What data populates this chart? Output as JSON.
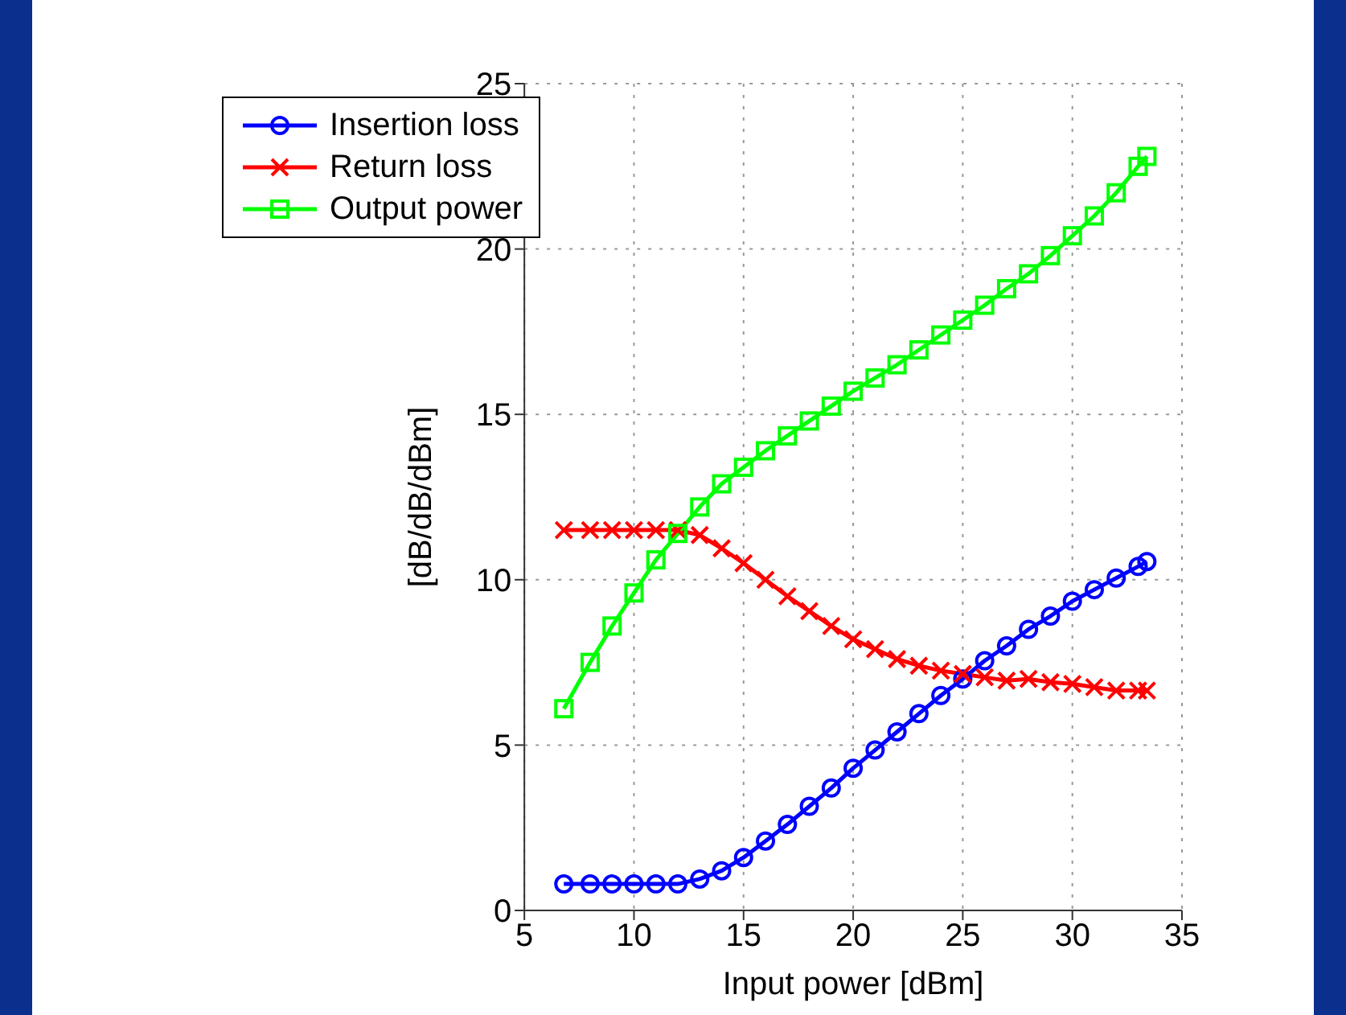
{
  "chart_data": {
    "type": "line",
    "xlabel": "Input power [dBm]",
    "ylabel": "[dB/dB/dBm]",
    "xlim": [
      5,
      35
    ],
    "xticks": [
      5,
      10,
      15,
      20,
      25,
      30,
      35
    ],
    "ylim": [
      0,
      25
    ],
    "yticks": [
      0,
      5,
      10,
      15,
      20,
      25
    ],
    "grid": true,
    "legend": "top left",
    "line_style": "solid",
    "x": [
      6.8,
      8,
      9,
      10,
      11,
      12,
      13,
      14,
      15,
      16,
      17,
      18,
      19,
      20,
      21,
      22,
      23,
      24,
      25,
      26,
      27,
      28,
      29,
      30,
      31,
      32,
      33,
      33.4
    ],
    "series": [
      {
        "name": "Insertion loss",
        "color": "#0000ff",
        "marker": "circle",
        "values": [
          0.8,
          0.8,
          0.8,
          0.8,
          0.8,
          0.8,
          0.95,
          1.2,
          1.6,
          2.1,
          2.6,
          3.15,
          3.7,
          4.3,
          4.85,
          5.4,
          5.95,
          6.5,
          7.0,
          7.55,
          8.0,
          8.5,
          8.9,
          9.35,
          9.7,
          10.05,
          10.4,
          10.55
        ]
      },
      {
        "name": "Return loss",
        "color": "#ff0000",
        "marker": "cross",
        "values": [
          11.5,
          11.5,
          11.5,
          11.5,
          11.5,
          11.5,
          11.35,
          10.95,
          10.5,
          10.0,
          9.5,
          9.05,
          8.6,
          8.2,
          7.9,
          7.6,
          7.4,
          7.25,
          7.15,
          7.05,
          6.95,
          7.0,
          6.9,
          6.85,
          6.75,
          6.65,
          6.65,
          6.65
        ]
      },
      {
        "name": "Output power",
        "color": "#00ff00",
        "marker": "square",
        "values": [
          6.1,
          7.5,
          8.6,
          9.6,
          10.6,
          11.4,
          12.2,
          12.9,
          13.4,
          13.9,
          14.35,
          14.8,
          15.25,
          15.7,
          16.1,
          16.5,
          16.95,
          17.4,
          17.85,
          18.3,
          18.8,
          19.25,
          19.8,
          20.4,
          21.0,
          21.7,
          22.5,
          22.8
        ]
      }
    ]
  }
}
